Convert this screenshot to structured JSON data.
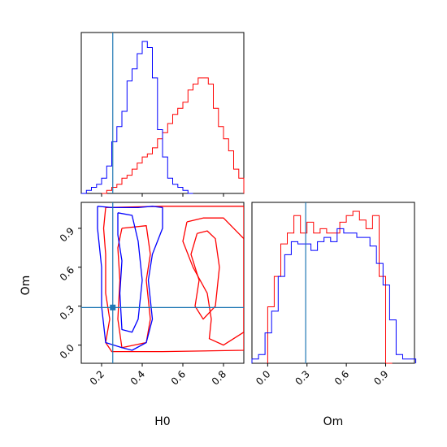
{
  "chart_data": {
    "type": "corner",
    "parameters": [
      "H0",
      "Om"
    ],
    "truths": {
      "H0": 0.255,
      "Om": 0.29
    },
    "colors": {
      "red": "#ff0000",
      "blue": "#0000ff",
      "truth": "#1f77b4",
      "frame": "#000000"
    },
    "panels": {
      "h0_hist": {
        "type": "histogram",
        "xlim": [
          0.1,
          0.9
        ],
        "bin_width": 0.025,
        "series": [
          {
            "color": "red",
            "start": 0.2,
            "values": [
              0,
              1,
              2,
              3,
              5,
              6,
              8,
              10,
              12,
              13,
              15,
              18,
              20,
              23,
              26,
              28,
              30,
              34,
              36,
              38,
              38,
              36,
              28,
              22,
              18,
              14,
              8,
              5
            ]
          },
          {
            "color": "blue",
            "start": 0.1,
            "values": [
              0,
              1,
              2,
              3,
              5,
              9,
              17,
              22,
              27,
              37,
              41,
              46,
              50,
              48,
              38,
              21,
              12,
              5,
              3,
              2,
              1,
              0
            ]
          }
        ]
      },
      "om_hist": {
        "type": "histogram",
        "xlim": [
          -0.12,
          1.12
        ],
        "bin_width": 0.05,
        "series": [
          {
            "color": "red",
            "start": 0.0,
            "values": [
              26,
              40,
              55,
              60,
              68,
              60,
              65,
              60,
              62,
              60,
              60,
              65,
              68,
              70,
              66,
              62,
              68,
              40,
              0
            ]
          },
          {
            "color": "blue",
            "start": -0.12,
            "values": [
              2,
              4,
              14,
              24,
              40,
              50,
              56,
              55,
              55,
              52,
              56,
              58,
              56,
              62,
              60,
              60,
              58,
              58,
              54,
              46,
              36,
              20,
              4,
              2,
              2
            ]
          }
        ]
      },
      "joint": {
        "type": "contour",
        "xlim": [
          0.1,
          0.9
        ],
        "ylim": [
          -0.14,
          1.1
        ],
        "xticks": [
          "0.2",
          "0.4",
          "0.6",
          "0.8"
        ],
        "yticks": [
          "0.0",
          "0.3",
          "0.6",
          "0.9"
        ],
        "xlabel": "H0",
        "ylabel": "Om",
        "contours": [
          {
            "color": "red",
            "points": [
              [
                0.22,
                1.06
              ],
              [
                0.5,
                1.07
              ],
              [
                0.9,
                1.07
              ],
              [
                0.9,
                -0.04
              ],
              [
                0.5,
                -0.05
              ],
              [
                0.25,
                -0.05
              ],
              [
                0.22,
                0.02
              ],
              [
                0.24,
                0.2
              ],
              [
                0.22,
                0.4
              ],
              [
                0.22,
                0.7
              ],
              [
                0.21,
                0.9
              ],
              [
                0.22,
                1.06
              ]
            ]
          },
          {
            "color": "red",
            "points": [
              [
                0.3,
                0.9
              ],
              [
                0.42,
                0.92
              ],
              [
                0.44,
                0.7
              ],
              [
                0.42,
                0.5
              ],
              [
                0.44,
                0.2
              ],
              [
                0.42,
                0.02
              ],
              [
                0.3,
                -0.02
              ],
              [
                0.28,
                0.2
              ],
              [
                0.29,
                0.5
              ],
              [
                0.28,
                0.75
              ],
              [
                0.3,
                0.9
              ]
            ]
          },
          {
            "color": "red",
            "points": [
              [
                0.62,
                0.95
              ],
              [
                0.7,
                0.98
              ],
              [
                0.8,
                0.98
              ],
              [
                0.85,
                0.9
              ],
              [
                0.9,
                0.82
              ],
              [
                0.9,
                0.1
              ],
              [
                0.8,
                0.0
              ],
              [
                0.73,
                0.05
              ],
              [
                0.74,
                0.2
              ],
              [
                0.72,
                0.4
              ],
              [
                0.65,
                0.6
              ],
              [
                0.6,
                0.8
              ],
              [
                0.62,
                0.95
              ]
            ]
          },
          {
            "color": "red",
            "points": [
              [
                0.67,
                0.86
              ],
              [
                0.72,
                0.88
              ],
              [
                0.76,
                0.82
              ],
              [
                0.78,
                0.6
              ],
              [
                0.76,
                0.3
              ],
              [
                0.7,
                0.2
              ],
              [
                0.66,
                0.3
              ],
              [
                0.68,
                0.5
              ],
              [
                0.64,
                0.7
              ],
              [
                0.67,
                0.86
              ]
            ]
          },
          {
            "color": "blue",
            "points": [
              [
                0.18,
                1.07
              ],
              [
                0.25,
                1.06
              ],
              [
                0.38,
                1.06
              ],
              [
                0.45,
                1.07
              ],
              [
                0.5,
                1.06
              ],
              [
                0.5,
                0.9
              ],
              [
                0.45,
                0.7
              ],
              [
                0.43,
                0.5
              ],
              [
                0.45,
                0.2
              ],
              [
                0.42,
                0.02
              ],
              [
                0.35,
                -0.04
              ],
              [
                0.3,
                -0.02
              ],
              [
                0.22,
                0.02
              ],
              [
                0.2,
                0.3
              ],
              [
                0.2,
                0.6
              ],
              [
                0.18,
                0.9
              ],
              [
                0.18,
                1.07
              ]
            ]
          },
          {
            "color": "blue",
            "points": [
              [
                0.28,
                1.02
              ],
              [
                0.35,
                1.0
              ],
              [
                0.38,
                0.8
              ],
              [
                0.4,
                0.5
              ],
              [
                0.38,
                0.2
              ],
              [
                0.35,
                0.1
              ],
              [
                0.3,
                0.12
              ],
              [
                0.29,
                0.4
              ],
              [
                0.3,
                0.65
              ],
              [
                0.28,
                0.85
              ],
              [
                0.28,
                1.02
              ]
            ]
          }
        ]
      }
    }
  }
}
